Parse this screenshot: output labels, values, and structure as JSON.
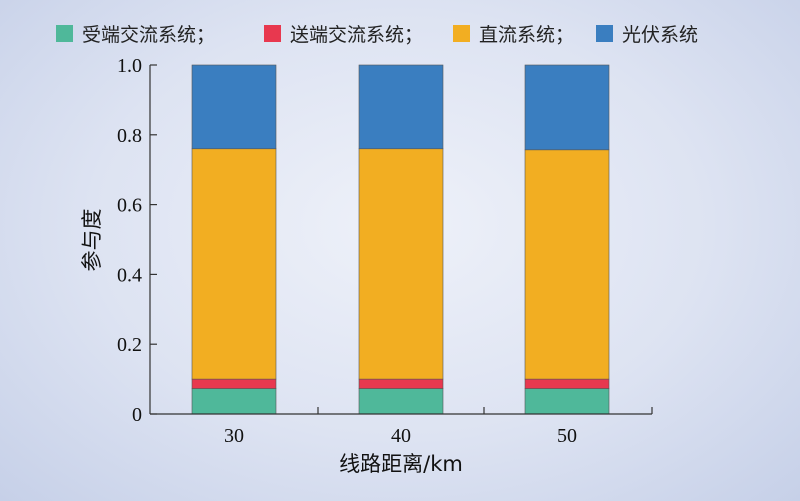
{
  "chart_data": {
    "type": "bar",
    "stacked": true,
    "categories": [
      "30",
      "40",
      "50"
    ],
    "series": [
      {
        "name": "受端交流系统",
        "color": "#4fb89a",
        "values": [
          0.073,
          0.073,
          0.073
        ]
      },
      {
        "name": "送端交流系统",
        "color": "#e8384f",
        "values": [
          0.027,
          0.027,
          0.027
        ]
      },
      {
        "name": "直流系统",
        "color": "#f2ae22",
        "values": [
          0.66,
          0.66,
          0.657
        ]
      },
      {
        "name": "光伏系统",
        "color": "#3a7ec0",
        "values": [
          0.24,
          0.24,
          0.243
        ]
      }
    ],
    "legend_separator": "；",
    "legend_position": "top",
    "xlabel": "线路距离/km",
    "ylabel": "参与度",
    "ylim": [
      0,
      1.0
    ],
    "yticks": [
      "0",
      "0.2",
      "0.4",
      "0.6",
      "0.8",
      "1.0"
    ],
    "grid": false
  }
}
